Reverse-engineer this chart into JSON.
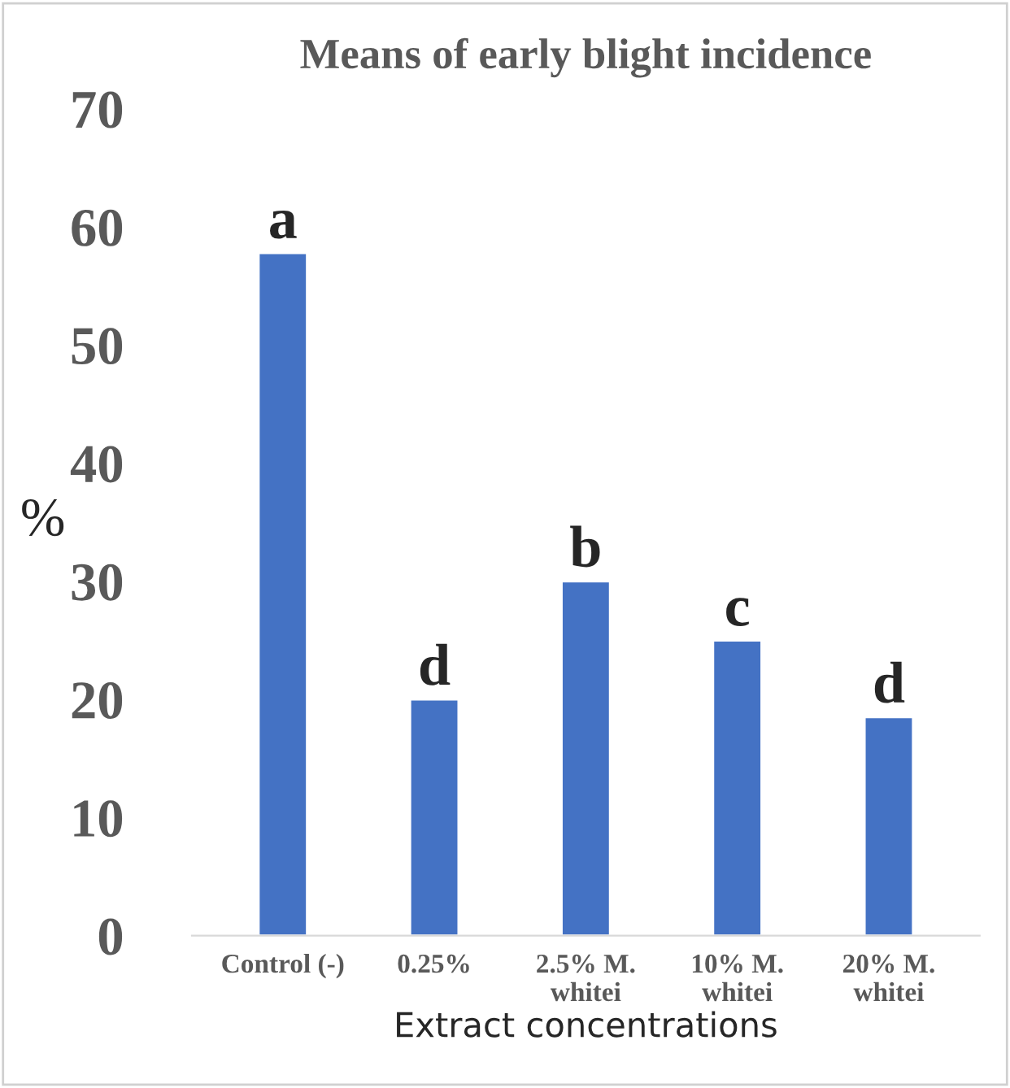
{
  "chart_data": {
    "type": "bar",
    "title": "Means of early blight incidence",
    "xlabel": "Extract concentrations",
    "ylabel": "%",
    "categories": [
      "Control (-)",
      "0.25%",
      "2.5% M.\nwhitei",
      "10% M.\nwhitei",
      "20% M.\nwhitei"
    ],
    "values": [
      57.8,
      20,
      30,
      25,
      18.5
    ],
    "color": "#4472c4",
    "ylim": [
      0,
      70
    ],
    "yticks": [
      0,
      10,
      20,
      30,
      40,
      50,
      60,
      70
    ],
    "grid": false,
    "annotations": [
      {
        "text": "a",
        "x": "Control (-)",
        "y": 57.8
      },
      {
        "text": "d",
        "x": "0.25%",
        "y": 20
      },
      {
        "text": "b",
        "x": "2.5% M.\nwhitei",
        "y": 30
      },
      {
        "text": "c",
        "x": "10% M.\nwhitei",
        "y": 25
      },
      {
        "text": "d",
        "x": "20% M.\nwhitei",
        "y": 18.5
      }
    ]
  }
}
